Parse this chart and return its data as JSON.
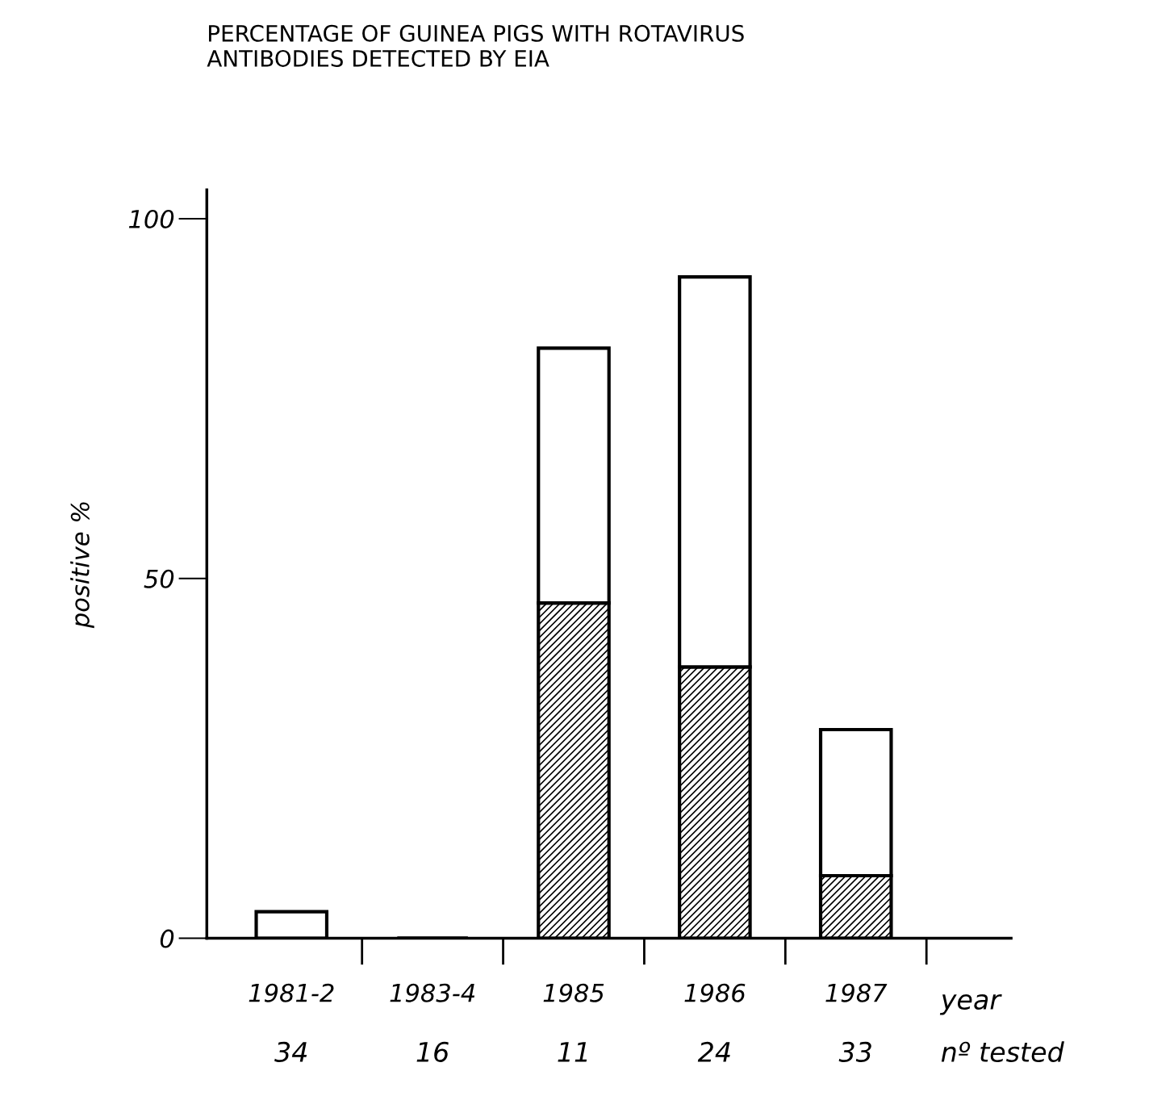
{
  "chart_data": {
    "type": "bar",
    "stacked": true,
    "title": "PERCENTAGE OF GUINEA PIGS WITH ROTAVIRUS\nANTIBODIES DETECTED BY EIA",
    "ylabel": "positive %",
    "xlabel": "year",
    "categories": [
      "1981-2",
      "1983-4",
      "1985",
      "1986",
      "1987"
    ],
    "series": [
      {
        "color": "#000000",
        "values": [
          0,
          0,
          46.6,
          37.7,
          8.7
        ]
      },
      {
        "color": "#ffffff",
        "values": [
          3.7,
          0,
          35.4,
          54.2,
          20.3
        ]
      }
    ],
    "ylim": [
      0,
      104
    ],
    "yticks": [
      0,
      50,
      100
    ],
    "grid": false,
    "legend": false,
    "annotations": [
      "34",
      "16",
      "11",
      "24",
      "33",
      "nº tested"
    ]
  }
}
